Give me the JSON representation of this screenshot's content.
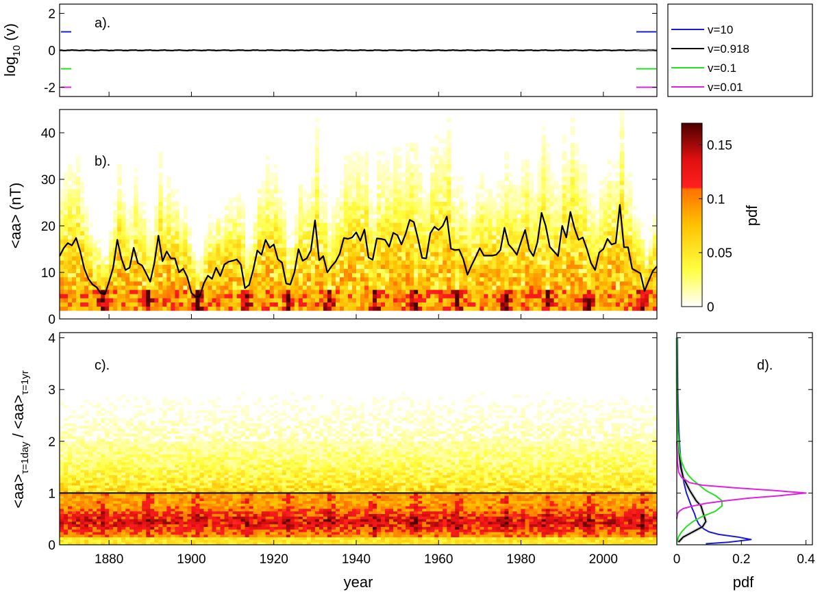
{
  "chart_data": [
    {
      "id": "a",
      "type": "line",
      "panel_label": "a).",
      "ylabel_main": "log",
      "ylabel_sub": "10",
      "ylabel_tail": " (v)",
      "xlim": [
        1868,
        2013
      ],
      "ylim": [
        -2.5,
        2.5
      ],
      "yticks": [
        "-2",
        "0",
        "2"
      ],
      "ytick_values": [
        -2,
        0,
        2
      ],
      "grid": false,
      "legend_position": "outside-right",
      "series": [
        {
          "name": "v=10",
          "log_value": 1,
          "color": "#1a1adb"
        },
        {
          "name": "v=0.918",
          "log_value": 0,
          "color": "#000000"
        },
        {
          "name": "v=0.1",
          "log_value": -1,
          "color": "#22e022"
        },
        {
          "name": "v=0.01",
          "log_value": -2,
          "color": "#e020e0"
        }
      ],
      "trace": {
        "x": [
          1868,
          1878,
          1888,
          1898,
          1908,
          1918,
          1928,
          1938,
          1948,
          1958,
          1968,
          1978,
          1988,
          1998,
          2008,
          2013
        ],
        "y": [
          0,
          -0.01,
          0.01,
          -0.02,
          0.01,
          -0.01,
          0.0,
          0.01,
          -0.01,
          0.0,
          -0.01,
          0.01,
          -0.02,
          0.0,
          0.01,
          0
        ]
      }
    },
    {
      "id": "b",
      "type": "heatmap",
      "panel_label": "b).",
      "ylabel": "<aa> (nT)",
      "xlim": [
        1868,
        2013
      ],
      "ylim": [
        0,
        45
      ],
      "yticks": [
        "0",
        "10",
        "20",
        "30",
        "40"
      ],
      "ytick_values": [
        0,
        10,
        20,
        30,
        40
      ],
      "colorbar_label": "pdf",
      "colorbar_ticks": [
        "0",
        "0.05",
        "0.1",
        "0.15"
      ],
      "colorbar_tick_values": [
        0,
        0.05,
        0.1,
        0.15
      ],
      "colorbar_range": [
        0,
        0.17
      ],
      "colors": [
        "#ffffff",
        "#ffff00",
        "#ffa500",
        "#ff2020",
        "#4a0000"
      ],
      "annual_mean": {
        "x": [
          1868,
          1869,
          1870,
          1871,
          1872,
          1873,
          1874,
          1875,
          1876,
          1877,
          1878,
          1879,
          1880,
          1881,
          1882,
          1883,
          1884,
          1885,
          1886,
          1887,
          1888,
          1889,
          1890,
          1891,
          1892,
          1893,
          1894,
          1895,
          1896,
          1897,
          1898,
          1899,
          1900,
          1901,
          1902,
          1903,
          1904,
          1905,
          1906,
          1907,
          1908,
          1909,
          1910,
          1911,
          1912,
          1913,
          1914,
          1915,
          1916,
          1917,
          1918,
          1919,
          1920,
          1921,
          1922,
          1923,
          1924,
          1925,
          1926,
          1927,
          1928,
          1929,
          1930,
          1931,
          1932,
          1933,
          1934,
          1935,
          1936,
          1937,
          1938,
          1939,
          1940,
          1941,
          1942,
          1943,
          1944,
          1945,
          1946,
          1947,
          1948,
          1949,
          1950,
          1951,
          1952,
          1953,
          1954,
          1955,
          1956,
          1957,
          1958,
          1959,
          1960,
          1961,
          1962,
          1963,
          1964,
          1965,
          1966,
          1967,
          1968,
          1969,
          1970,
          1971,
          1972,
          1973,
          1974,
          1975,
          1976,
          1977,
          1978,
          1979,
          1980,
          1981,
          1982,
          1983,
          1984,
          1985,
          1986,
          1987,
          1988,
          1989,
          1990,
          1991,
          1992,
          1993,
          1994,
          1995,
          1996,
          1997,
          1998,
          1999,
          2000,
          2001,
          2002,
          2003,
          2004,
          2005,
          2006,
          2007,
          2008,
          2009,
          2010,
          2011,
          2012,
          2013
        ],
        "y": [
          13.5,
          15.2,
          16.3,
          15.8,
          17.4,
          14.5,
          10.8,
          8.6,
          7.4,
          6.8,
          5.5,
          5.3,
          8.0,
          11.0,
          17.0,
          13.0,
          10.5,
          11.0,
          15.3,
          12.0,
          11.5,
          9.8,
          8.0,
          12.0,
          17.9,
          12.4,
          14.5,
          13.0,
          13.0,
          10.0,
          10.8,
          9.0,
          5.6,
          4.7,
          4.8,
          7.6,
          9.3,
          8.6,
          11.0,
          9.2,
          11.7,
          12.3,
          12.5,
          12.8,
          11.7,
          6.6,
          7.3,
          10.5,
          14.7,
          13.8,
          17.0,
          15.3,
          16.0,
          12.8,
          12.1,
          7.6,
          7.4,
          10.0,
          15.0,
          12.5,
          13.0,
          14.7,
          21.2,
          12.6,
          13.5,
          10.0,
          11.3,
          12.3,
          14.0,
          17.4,
          17.2,
          17.5,
          18.6,
          16.8,
          19.2,
          13.2,
          12.7,
          17.3,
          17.2,
          17.0,
          15.5,
          18.5,
          18.0,
          16.0,
          18.3,
          21.3,
          20.8,
          17.2,
          13.1,
          13.0,
          18.4,
          19.8,
          19.1,
          20.0,
          22.0,
          15.1,
          14.8,
          14.9,
          12.8,
          9.5,
          11.5,
          13.3,
          15.2,
          13.6,
          13.6,
          13.6,
          13.8,
          14.8,
          19.6,
          16.0,
          15.0,
          13.8,
          16.5,
          19.1,
          14.9,
          13.5,
          16.5,
          22.8,
          20.0,
          15.5,
          14.5,
          13.5,
          20.0,
          17.5,
          23.0,
          19.5,
          17.0,
          17.5,
          15.0,
          12.0,
          10.5,
          14.3,
          15.0,
          17.2,
          16.0,
          16.3,
          24.5,
          15.4,
          15.4,
          10.8,
          10.3,
          9.8,
          6.0,
          8.2,
          10.3,
          11.3,
          10.3
        ]
      }
    },
    {
      "id": "c",
      "type": "heatmap",
      "panel_label": "c).",
      "ylabel_parts": [
        "<aa>",
        "τ=1day",
        " / <aa>",
        "τ=1yr"
      ],
      "xlabel": "year",
      "xlim": [
        1868,
        2013
      ],
      "xticks": [
        "1880",
        "1900",
        "1920",
        "1940",
        "1960",
        "1980",
        "2000"
      ],
      "xtick_values": [
        1880,
        1900,
        1920,
        1940,
        1960,
        1980,
        2000
      ],
      "ylim": [
        0,
        4.1
      ],
      "yticks": [
        "0",
        "1",
        "2",
        "3",
        "4"
      ],
      "ytick_values": [
        0,
        1,
        2,
        3,
        4
      ],
      "reference_line": 1
    },
    {
      "id": "d",
      "type": "line",
      "panel_label": "d).",
      "xlabel": "pdf",
      "xlim": [
        0,
        0.42
      ],
      "xticks": [
        "0",
        "0.2",
        "0.4"
      ],
      "xtick_values": [
        0,
        0.2,
        0.4
      ],
      "ylim": [
        0,
        4.1
      ],
      "series": [
        {
          "name": "v=10",
          "color": "#1a1adb",
          "y": [
            0.02,
            0.05,
            0.1,
            0.15,
            0.2,
            0.25,
            0.3,
            0.35,
            0.4,
            0.5,
            0.6,
            0.7,
            0.8,
            0.9,
            1.0,
            1.2,
            1.5,
            2.0,
            2.5,
            3.0,
            3.5,
            4.0
          ],
          "pdf": [
            0.09,
            0.16,
            0.23,
            0.19,
            0.13,
            0.1,
            0.085,
            0.075,
            0.068,
            0.06,
            0.055,
            0.048,
            0.042,
            0.036,
            0.03,
            0.022,
            0.014,
            0.008,
            0.005,
            0.003,
            0.002,
            0.001
          ]
        },
        {
          "name": "v=0.918",
          "color": "#000000",
          "y": [
            0.05,
            0.15,
            0.25,
            0.35,
            0.45,
            0.55,
            0.65,
            0.75,
            0.85,
            0.95,
            1.05,
            1.15,
            1.3,
            1.5,
            1.8,
            2.2,
            2.7,
            3.2,
            3.7,
            4.0
          ],
          "pdf": [
            0.005,
            0.02,
            0.05,
            0.08,
            0.09,
            0.085,
            0.08,
            0.075,
            0.06,
            0.05,
            0.04,
            0.032,
            0.02,
            0.012,
            0.007,
            0.004,
            0.002,
            0.001,
            0.0008,
            0.0005
          ]
        },
        {
          "name": "v=0.1",
          "color": "#22e022",
          "y": [
            0.05,
            0.15,
            0.25,
            0.35,
            0.45,
            0.55,
            0.65,
            0.75,
            0.85,
            0.95,
            1.05,
            1.15,
            1.25,
            1.35,
            1.45,
            1.6,
            1.8,
            2.2,
            2.7,
            3.2,
            4.0
          ],
          "pdf": [
            0.001,
            0.005,
            0.015,
            0.03,
            0.05,
            0.08,
            0.12,
            0.14,
            0.14,
            0.12,
            0.09,
            0.07,
            0.05,
            0.035,
            0.025,
            0.015,
            0.008,
            0.003,
            0.001,
            0.0005,
            0.0002
          ]
        },
        {
          "name": "v=0.01",
          "color": "#e020e0",
          "y": [
            0.5,
            0.6,
            0.65,
            0.7,
            0.75,
            0.8,
            0.85,
            0.9,
            0.95,
            1.0,
            1.05,
            1.1,
            1.15,
            1.2,
            1.3,
            1.4,
            1.6,
            2.0
          ],
          "pdf": [
            0.0,
            0.002,
            0.008,
            0.02,
            0.05,
            0.09,
            0.15,
            0.22,
            0.32,
            0.4,
            0.3,
            0.18,
            0.08,
            0.04,
            0.015,
            0.006,
            0.002,
            0.0
          ]
        }
      ]
    }
  ]
}
